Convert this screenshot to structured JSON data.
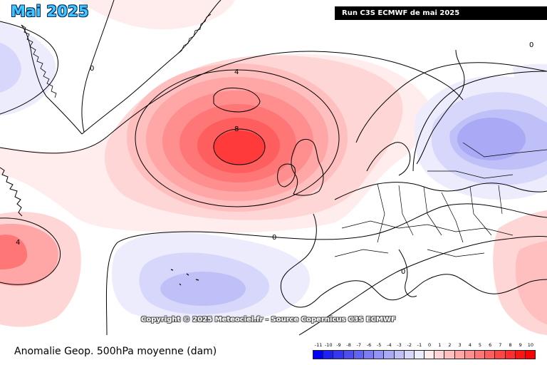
{
  "header": {
    "title": "Mai 2025",
    "run_banner": "Run C3S ECMWF de mai 2025"
  },
  "overlay": {
    "copyright": "Copyright © 2025 Meteociel.fr - Source Copernicus C3S ECMWF"
  },
  "footer": {
    "caption": "Anomalie Geop. 500hPa moyenne (dam)"
  },
  "contour_labels": [
    "0",
    "4",
    "8",
    "0",
    "0",
    "4",
    "0"
  ],
  "legend": {
    "ticks": [
      "-11",
      "-10",
      "-9",
      "-8",
      "-7",
      "-6",
      "-5",
      "-4",
      "-3",
      "-2",
      "-1",
      "0",
      "1",
      "2",
      "3",
      "4",
      "5",
      "6",
      "7",
      "8",
      "9",
      "10"
    ],
    "colors": [
      "#0000ff",
      "#1f1ff6",
      "#3535f2",
      "#4d4df2",
      "#6363f2",
      "#7c7cf3",
      "#9393f5",
      "#a9a9f6",
      "#c0c0f8",
      "#d7d7fb",
      "#ececfd",
      "#ffecec",
      "#ffd6d6",
      "#ffbfbf",
      "#ffa6a6",
      "#ff8e8e",
      "#ff7676",
      "#ff5e5e",
      "#ff4545",
      "#ff2d2d",
      "#ff1414",
      "#ff0000"
    ]
  },
  "colors": {
    "positive_anomaly": "#ff3a3a",
    "negative_anomaly": "#8f8ff2",
    "title_fill": "#3ec8ff"
  }
}
